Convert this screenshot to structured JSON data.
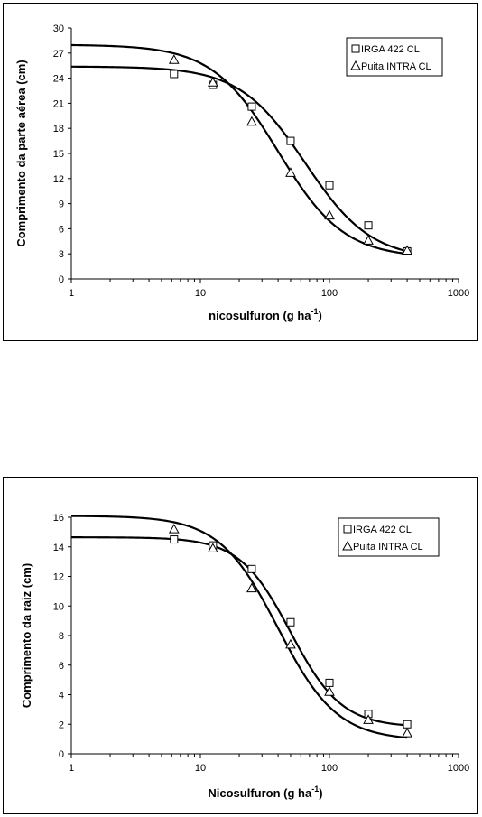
{
  "chart_data": [
    {
      "type": "line",
      "xlabel": "nicosulfuron (g ha",
      "xlabel_sup": "-1",
      "xlabel_tail": ")",
      "ylabel": "Comprimento da parte aérea (cm)",
      "xscale": "log",
      "xlim": [
        1,
        1000
      ],
      "ylim": [
        0,
        30
      ],
      "xticks": [
        1,
        10,
        100,
        1000
      ],
      "xtick_labels": [
        "1",
        "10",
        "100",
        "1000"
      ],
      "yticks": [
        0,
        3,
        6,
        9,
        12,
        15,
        18,
        21,
        24,
        27,
        30
      ],
      "ytick_labels": [
        "0",
        "3",
        "6",
        "9",
        "12",
        "15",
        "18",
        "21",
        "24",
        "27",
        "30"
      ],
      "grid": false,
      "legend_position": "top-right",
      "series": [
        {
          "name": "IRGA 422 CL",
          "marker": "square",
          "color": "#000000",
          "x": [
            6.25,
            12.5,
            25,
            50,
            100,
            200,
            400
          ],
          "y": [
            24.5,
            23.2,
            20.6,
            16.5,
            11.2,
            6.4,
            3.3
          ],
          "curve": {
            "top": 25.4,
            "bottom": 2.3,
            "ed50": 65,
            "slope": 1.7
          }
        },
        {
          "name": "Puita INTRA CL",
          "marker": "triangle",
          "color": "#000000",
          "x": [
            6.25,
            12.5,
            25,
            50,
            100,
            200,
            400
          ],
          "y": [
            26.2,
            23.5,
            18.8,
            12.7,
            7.6,
            4.6,
            3.4
          ],
          "curve": {
            "top": 28.0,
            "bottom": 2.5,
            "ed50": 40,
            "slope": 1.7
          }
        }
      ]
    },
    {
      "type": "line",
      "xlabel": "Nicosulfuron (g ha",
      "xlabel_sup": "-1",
      "xlabel_tail": ")",
      "ylabel": "Comprimento da raiz (cm)",
      "xscale": "log",
      "xlim": [
        1,
        1000
      ],
      "ylim": [
        0,
        16
      ],
      "xticks": [
        1,
        10,
        100,
        1000
      ],
      "xtick_labels": [
        "1",
        "10",
        "100",
        "1000"
      ],
      "yticks": [
        0,
        2,
        4,
        6,
        8,
        10,
        12,
        14,
        16
      ],
      "ytick_labels": [
        "0",
        "2",
        "4",
        "6",
        "8",
        "10",
        "12",
        "14",
        "16"
      ],
      "grid": false,
      "legend_position": "top-right",
      "series": [
        {
          "name": "IRGA 422 CL",
          "marker": "square",
          "color": "#000000",
          "x": [
            6.25,
            12.5,
            25,
            50,
            100,
            200,
            400
          ],
          "y": [
            14.5,
            14.1,
            12.5,
            8.9,
            4.8,
            2.7,
            2.0
          ],
          "curve": {
            "top": 14.65,
            "bottom": 1.8,
            "ed50": 50,
            "slope": 2.2
          }
        },
        {
          "name": "Puita INTRA CL",
          "marker": "triangle",
          "color": "#000000",
          "x": [
            6.25,
            12.5,
            25,
            50,
            100,
            200,
            400
          ],
          "y": [
            15.2,
            13.9,
            11.2,
            7.4,
            4.2,
            2.3,
            1.4
          ],
          "curve": {
            "top": 16.1,
            "bottom": 0.9,
            "ed50": 40,
            "slope": 1.9
          }
        }
      ]
    }
  ]
}
